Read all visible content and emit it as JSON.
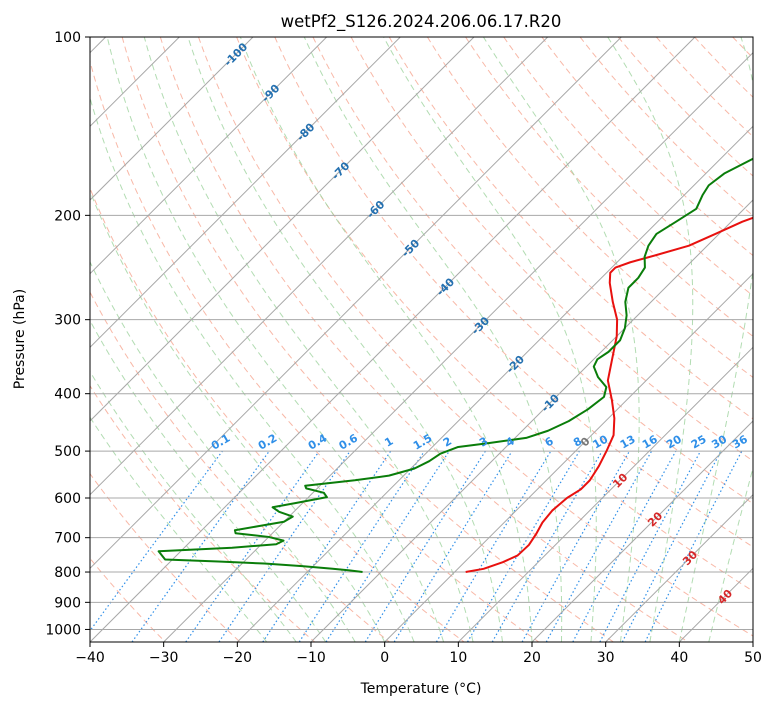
{
  "chart_data": {
    "type": "line",
    "subtype": "skew-t log-p diagram",
    "title": "wetPf2_S126.2024.206.06.17.R20",
    "xlabel": "Temperature (°C)",
    "ylabel": "Pressure (hPa)",
    "xlim": [
      -40,
      50
    ],
    "ylim": [
      1050,
      100
    ],
    "y_scale": "log",
    "x_ticks": [
      -40,
      -30,
      -20,
      -10,
      0,
      10,
      20,
      30,
      40,
      50
    ],
    "y_ticks": [
      100,
      200,
      300,
      400,
      500,
      600,
      700,
      800,
      900,
      1000
    ],
    "grid": true,
    "series": [
      {
        "role": "temperature",
        "color": "#e8110f",
        "points": [
          {
            "p": 800,
            "t": 1.5
          },
          {
            "p": 790,
            "t": 3.5
          },
          {
            "p": 770,
            "t": 5.2
          },
          {
            "p": 750,
            "t": 6.3
          },
          {
            "p": 720,
            "t": 6.4
          },
          {
            "p": 690,
            "t": 5.9
          },
          {
            "p": 660,
            "t": 5.2
          },
          {
            "p": 630,
            "t": 4.9
          },
          {
            "p": 600,
            "t": 5.2
          },
          {
            "p": 580,
            "t": 5.9
          },
          {
            "p": 560,
            "t": 5.9
          },
          {
            "p": 530,
            "t": 5.2
          },
          {
            "p": 500,
            "t": 4.2
          },
          {
            "p": 470,
            "t": 3.0
          },
          {
            "p": 440,
            "t": 0.8
          },
          {
            "p": 410,
            "t": -2.0
          },
          {
            "p": 380,
            "t": -5.2
          },
          {
            "p": 350,
            "t": -7.5
          },
          {
            "p": 320,
            "t": -10.0
          },
          {
            "p": 300,
            "t": -12.2
          },
          {
            "p": 280,
            "t": -15.2
          },
          {
            "p": 260,
            "t": -18.2
          },
          {
            "p": 250,
            "t": -19.5
          },
          {
            "p": 245,
            "t": -19.5
          },
          {
            "p": 240,
            "t": -18.2
          },
          {
            "p": 233,
            "t": -15.5
          },
          {
            "p": 225,
            "t": -12.5
          },
          {
            "p": 215,
            "t": -10.5
          },
          {
            "p": 205,
            "t": -8.5
          },
          {
            "p": 195,
            "t": -5.5
          },
          {
            "p": 183,
            "t": -0.2
          },
          {
            "p": 170,
            "t": 3.2
          },
          {
            "p": 160,
            "t": 5.0
          },
          {
            "p": 150,
            "t": 6.5
          },
          {
            "p": 140,
            "t": 8.0
          },
          {
            "p": 130,
            "t": 10.3
          },
          {
            "p": 120,
            "t": 12.0
          },
          {
            "p": 110,
            "t": 13.5
          },
          {
            "p": 100,
            "t": 16.5
          }
        ]
      },
      {
        "role": "dewpoint",
        "color": "#0a7d0a",
        "points": [
          {
            "p": 800,
            "t": -12.5
          },
          {
            "p": 795,
            "t": -14.5
          },
          {
            "p": 790,
            "t": -17.0
          },
          {
            "p": 782,
            "t": -21.5
          },
          {
            "p": 774,
            "t": -27.0
          },
          {
            "p": 768,
            "t": -33.5
          },
          {
            "p": 762,
            "t": -41.0
          },
          {
            "p": 738,
            "t": -43.0
          },
          {
            "p": 728,
            "t": -33.5
          },
          {
            "p": 718,
            "t": -28.0
          },
          {
            "p": 708,
            "t": -27.5
          },
          {
            "p": 698,
            "t": -30.0
          },
          {
            "p": 688,
            "t": -35.0
          },
          {
            "p": 680,
            "t": -35.5
          },
          {
            "p": 670,
            "t": -33.0
          },
          {
            "p": 658,
            "t": -30.0
          },
          {
            "p": 645,
            "t": -29.5
          },
          {
            "p": 633,
            "t": -32.0
          },
          {
            "p": 622,
            "t": -33.5
          },
          {
            "p": 612,
            "t": -31.0
          },
          {
            "p": 598,
            "t": -27.5
          },
          {
            "p": 588,
            "t": -28.5
          },
          {
            "p": 578,
            "t": -31.5
          },
          {
            "p": 572,
            "t": -32.0
          },
          {
            "p": 560,
            "t": -26.0
          },
          {
            "p": 550,
            "t": -22.0
          },
          {
            "p": 535,
            "t": -19.5
          },
          {
            "p": 520,
            "t": -18.5
          },
          {
            "p": 505,
            "t": -18.0
          },
          {
            "p": 492,
            "t": -16.5
          },
          {
            "p": 485,
            "t": -13.0
          },
          {
            "p": 475,
            "t": -8.5
          },
          {
            "p": 462,
            "t": -6.5
          },
          {
            "p": 445,
            "t": -5.0
          },
          {
            "p": 425,
            "t": -4.0
          },
          {
            "p": 405,
            "t": -3.5
          },
          {
            "p": 390,
            "t": -4.5
          },
          {
            "p": 375,
            "t": -7.0
          },
          {
            "p": 360,
            "t": -9.0
          },
          {
            "p": 350,
            "t": -9.5
          },
          {
            "p": 340,
            "t": -9.0
          },
          {
            "p": 325,
            "t": -9.0
          },
          {
            "p": 310,
            "t": -10.0
          },
          {
            "p": 295,
            "t": -11.5
          },
          {
            "p": 280,
            "t": -13.5
          },
          {
            "p": 265,
            "t": -15.0
          },
          {
            "p": 255,
            "t": -15.0
          },
          {
            "p": 245,
            "t": -15.5
          },
          {
            "p": 235,
            "t": -17.0
          },
          {
            "p": 225,
            "t": -18.0
          },
          {
            "p": 215,
            "t": -18.5
          },
          {
            "p": 205,
            "t": -17.5
          },
          {
            "p": 195,
            "t": -16.5
          },
          {
            "p": 185,
            "t": -17.5
          },
          {
            "p": 178,
            "t": -18.0
          },
          {
            "p": 170,
            "t": -17.5
          },
          {
            "p": 160,
            "t": -15.5
          },
          {
            "p": 150,
            "t": -12.5
          },
          {
            "p": 140,
            "t": -10.0
          },
          {
            "p": 130,
            "t": -6.5
          },
          {
            "p": 120,
            "t": -2.5
          },
          {
            "p": 112,
            "t": 1.0
          },
          {
            "p": 105,
            "t": 2.5
          },
          {
            "p": 100,
            "t": 3.0
          }
        ]
      }
    ],
    "isotherm_labels": [
      "-100",
      "-90",
      "-80",
      "-70",
      "-60",
      "-50",
      "-40",
      "-30",
      "-20",
      "-10",
      "0",
      "10",
      "20",
      "30",
      "40"
    ],
    "isotherm_label_values": [
      -100,
      -90,
      -80,
      -70,
      -60,
      -50,
      -40,
      -30,
      -20,
      -10,
      0,
      10,
      20,
      30,
      40
    ],
    "mixing_ratio_labels": [
      "0.1",
      "0.2",
      "0.4",
      "0.6",
      "1",
      "1.5",
      "2",
      "3",
      "4",
      "6",
      "8",
      "10",
      "13",
      "16",
      "20",
      "25",
      "30",
      "36"
    ],
    "mixing_ratio_values": [
      0.1,
      0.2,
      0.4,
      0.6,
      1,
      1.5,
      2,
      3,
      4,
      6,
      8,
      10,
      13,
      16,
      20,
      25,
      30,
      36
    ],
    "colors": {
      "temperature": "#e8110f",
      "dewpoint": "#0a7d0a",
      "isotherm_grid": "#a8a8a8",
      "dry_adiabat": "#f5a08a",
      "moist_adiabat": "#9fd39f",
      "mixing_ratio": "#2f8fe8",
      "isotherm_label_cold": "#2470b0",
      "isotherm_label_zero": "#777777",
      "isotherm_label_warm": "#d62728",
      "mixing_ratio_label": "#2f8fe8",
      "cold_boundary": "#d8c6ae"
    }
  }
}
